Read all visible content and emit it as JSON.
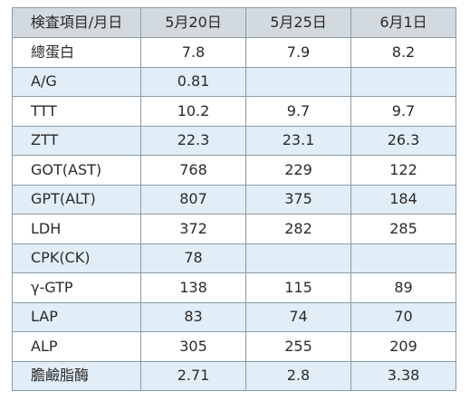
{
  "table": {
    "headers": [
      "検査項目/月日",
      "5月20日",
      "5月25日",
      "6月1日"
    ],
    "rows": [
      {
        "item": "總蛋白",
        "values": [
          "7.8",
          "7.9",
          "8.2"
        ]
      },
      {
        "item": "A/G",
        "values": [
          "0.81",
          "",
          ""
        ]
      },
      {
        "item": "TTT",
        "values": [
          "10.2",
          "9.7",
          "9.7"
        ]
      },
      {
        "item": "ZTT",
        "values": [
          "22.3",
          "23.1",
          "26.3"
        ]
      },
      {
        "item": "GOT(AST)",
        "values": [
          "768",
          "229",
          "122"
        ]
      },
      {
        "item": "GPT(ALT)",
        "values": [
          "807",
          "375",
          "184"
        ]
      },
      {
        "item": "LDH",
        "values": [
          "372",
          "282",
          "285"
        ]
      },
      {
        "item": "CPK(CK)",
        "values": [
          "78",
          "",
          ""
        ]
      },
      {
        "item": "γ-GTP",
        "values": [
          "138",
          "115",
          "89"
        ]
      },
      {
        "item": "LAP",
        "values": [
          "83",
          "74",
          "70"
        ]
      },
      {
        "item": "ALP",
        "values": [
          "305",
          "255",
          "209"
        ]
      },
      {
        "item": "膽鹼脂酶",
        "values": [
          "2.71",
          "2.8",
          "3.38"
        ]
      }
    ]
  },
  "colors": {
    "header_bg": "#d3dadf",
    "shaded_row_bg": "#e2eef7",
    "border": "#8a9aa6"
  }
}
